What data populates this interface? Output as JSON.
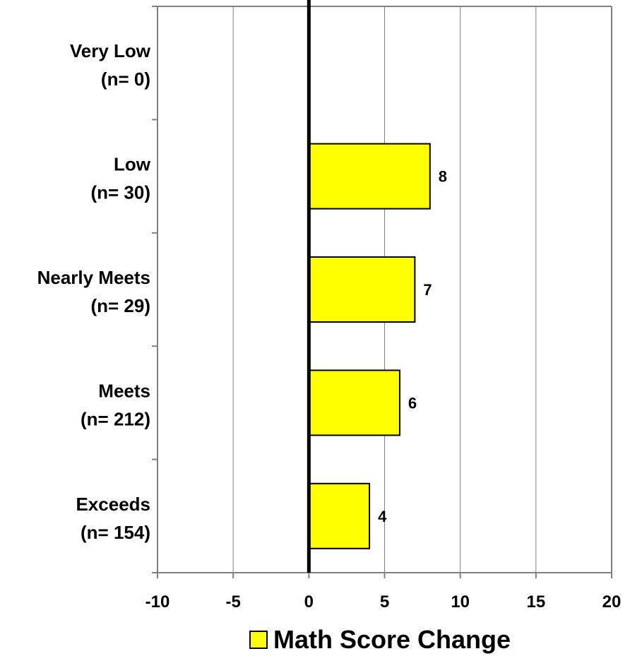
{
  "chart_data": {
    "type": "bar",
    "orientation": "horizontal",
    "categories": [
      [
        "Very Low",
        "(n= 0)"
      ],
      [
        "Low",
        "(n= 30)"
      ],
      [
        "Nearly Meets",
        "(n= 29)"
      ],
      [
        "Meets",
        "(n= 212)"
      ],
      [
        "Exceeds",
        "(n= 154)"
      ]
    ],
    "series": [
      {
        "name": "Math Score Change",
        "values": [
          null,
          8,
          7,
          6,
          4
        ],
        "data_labels": [
          "",
          "8",
          "7",
          "6",
          "4"
        ],
        "color": "#ffff00"
      }
    ],
    "xlim": [
      -10,
      20
    ],
    "xticks": [
      -10,
      -5,
      0,
      5,
      10,
      15,
      20
    ],
    "xtick_labels": [
      "-10",
      "-5",
      "0",
      "5",
      "10",
      "15",
      "20"
    ],
    "grid": "vertical",
    "legend_position": "bottom-center",
    "title": "",
    "xlabel": "",
    "ylabel": ""
  }
}
